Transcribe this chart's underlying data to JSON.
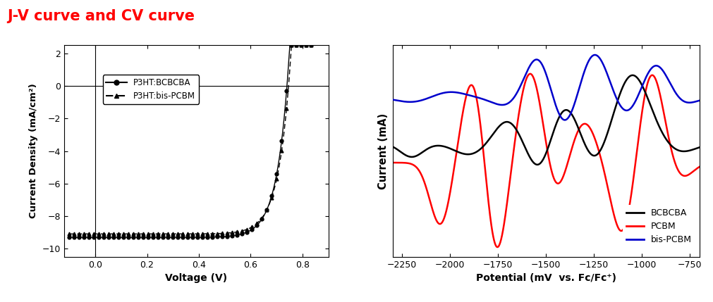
{
  "title": "J-V curve and CV curve",
  "title_color": "#ff0000",
  "title_fontsize": 15,
  "title_fontweight": "bold",
  "jv_xlabel": "Voltage (V)",
  "jv_ylabel": "Current Density (mA/cm²)",
  "jv_xlim": [
    -0.12,
    0.9
  ],
  "jv_ylim": [
    -10.5,
    2.5
  ],
  "jv_xticks": [
    0.0,
    0.2,
    0.4,
    0.6,
    0.8
  ],
  "jv_yticks": [
    2,
    0,
    -2,
    -4,
    -6,
    -8,
    -10
  ],
  "cv_xlabel": "Potential (mV  vs. Fc/Fc⁺)",
  "cv_ylabel": "Current (mA)",
  "cv_xlim": [
    -2300,
    -700
  ],
  "cv_xticks": [
    -2250,
    -2000,
    -1750,
    -1500,
    -1250,
    -1000,
    -750
  ],
  "legend_jv": [
    {
      "label": "P3HT:BCBCBA",
      "linestyle": "-",
      "marker": "o"
    },
    {
      "label": "P3HT:bis-PCBM",
      "linestyle": "--",
      "marker": "^"
    }
  ],
  "legend_cv": [
    {
      "label": "BCBCBA",
      "color": "#000000"
    },
    {
      "label": "PCBM",
      "color": "#ff0000"
    },
    {
      "label": "bis-PCBM",
      "color": "#0000cc"
    }
  ],
  "background_color": "#ffffff"
}
